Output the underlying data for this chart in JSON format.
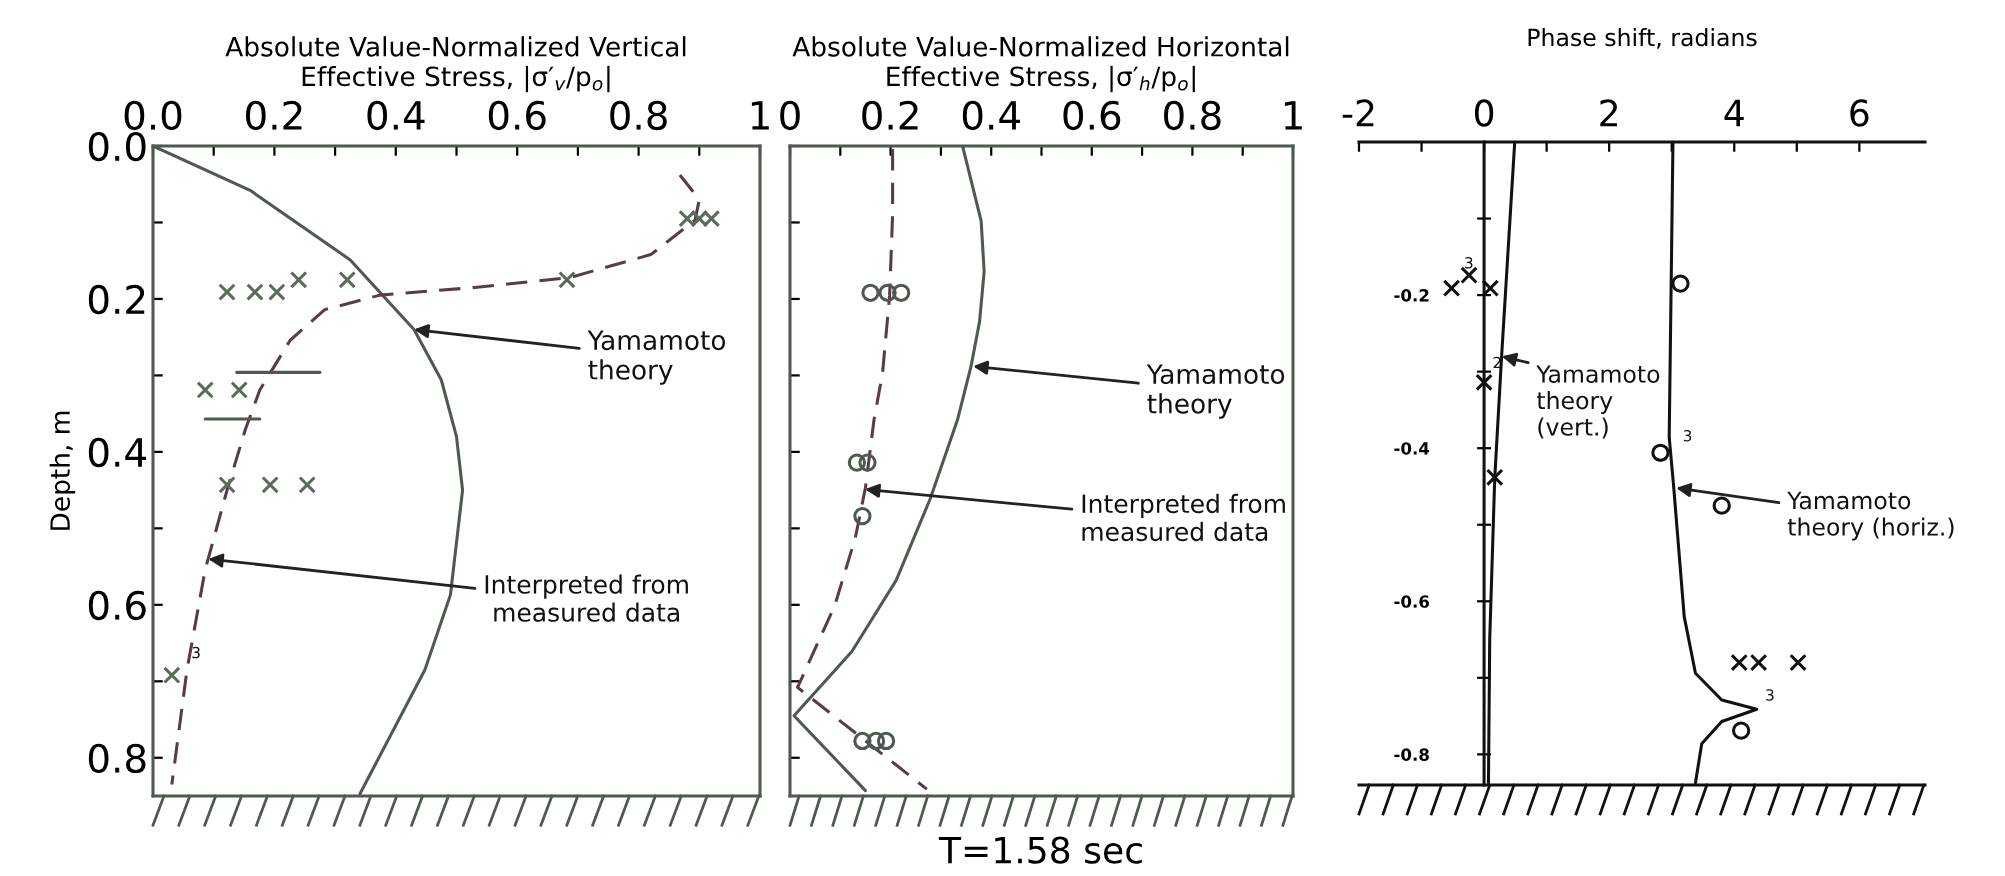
{
  "chart_data": [
    {
      "type": "line",
      "xlabel": "Absolute Value-Normalized Vertical\nEffective Stress, |σ′$_{v}$/p$_{o}$|",
      "ylabel": "Depth, m",
      "xlim": [
        0,
        1
      ],
      "xticks": [
        {
          "value": 0,
          "label": "0.0"
        },
        {
          "value": 0.1,
          "label": null
        },
        0.2,
        {
          "value": 0.3,
          "label": null
        },
        0.4,
        {
          "value": 0.5,
          "label": null
        },
        0.6,
        {
          "value": 0.7,
          "label": null
        },
        0.8,
        {
          "value": 0.9,
          "label": null
        },
        1
      ],
      "ylim": [
        0.85,
        0
      ],
      "yticks": [
        {
          "value": 0,
          "label": "0.0"
        },
        {
          "value": 0.1,
          "label": null
        },
        0.2,
        {
          "value": 0.3,
          "label": null
        },
        0.4,
        {
          "value": 0.5,
          "label": null
        },
        0.6,
        {
          "value": 0.7,
          "label": null
        },
        0.8
      ],
      "series": [
        {
          "color": "#4d5a4d",
          "line_style": "solid",
          "x": [
            0,
            0.16,
            0.325,
            0.43,
            0.475,
            0.5,
            0.51,
            0.49,
            0.448,
            0.341
          ],
          "values": [
            0,
            0.058,
            0.149,
            0.24,
            0.306,
            0.38,
            0.45,
            0.587,
            0.685,
            0.847
          ]
        },
        {
          "color": "#5b3a4a",
          "line_style": "dashed",
          "x": [
            0.868,
            0.9,
            0.893,
            0.82,
            0.687,
            0.53,
            0.374,
            0.283,
            0.226,
            0.176,
            0.152,
            0.122,
            0.086,
            0.056,
            0.031
          ],
          "values": [
            0.038,
            0.07,
            0.097,
            0.142,
            0.172,
            0.185,
            0.195,
            0.214,
            0.254,
            0.319,
            0.371,
            0.45,
            0.554,
            0.685,
            0.835
          ]
        },
        {
          "type": "scatter",
          "color": "#5a6b5a",
          "marker": "cross",
          "x": [
            0.88,
            0.9,
            0.92,
            0.122,
            0.168,
            0.204,
            0.24,
            0.32,
            0.682,
            0.086,
            0.142,
            0.122,
            0.193,
            0.254,
            0.031
          ],
          "values": [
            0.095,
            0.095,
            0.095,
            0.191,
            0.191,
            0.191,
            0.175,
            0.175,
            0.175,
            0.319,
            0.319,
            0.443,
            0.443,
            0.443,
            0.692
          ]
        },
        {
          "color": "#4d5a4d",
          "line_style": "solid",
          "x": [
            0.138,
            0.275
          ],
          "values": [
            0.296,
            0.296
          ]
        },
        {
          "color": "#4d5a4d",
          "line_style": "solid",
          "x": [
            0.086,
            0.176
          ],
          "values": [
            0.357,
            0.357
          ]
        }
      ],
      "annotations": [
        {
          "text": "Yamamoto\ntheory",
          "x": 0.43,
          "y": 0.24
        },
        {
          "text": "Interpreted from\nmeasured data",
          "x": 0.091,
          "y": 0.54
        },
        {
          "text": "3",
          "x": 0.031,
          "y": 0.692
        }
      ]
    },
    {
      "type": "line",
      "xlabel": "Absolute Value-Normalized Horizontal\nEffective Stress, |σ′$_{h}$/p$_{o}$|",
      "xlim": [
        0,
        1
      ],
      "xticks": [
        0,
        {
          "value": 0.1,
          "label": null
        },
        0.2,
        {
          "value": 0.3,
          "label": null
        },
        0.4,
        {
          "value": 0.5,
          "label": null
        },
        0.6,
        {
          "value": 0.7,
          "label": null
        },
        0.8,
        {
          "value": 0.9,
          "label": null
        },
        1
      ],
      "ylim": [
        0.85,
        0
      ],
      "yticks": [
        {
          "value": 0,
          "label": null
        },
        {
          "value": 0.1,
          "label": null
        },
        {
          "value": 0.2,
          "label": null
        },
        {
          "value": 0.3,
          "label": null
        },
        {
          "value": 0.4,
          "label": null
        },
        {
          "value": 0.5,
          "label": null
        },
        {
          "value": 0.6,
          "label": null
        },
        {
          "value": 0.7,
          "label": null
        },
        {
          "value": 0.8,
          "label": null
        }
      ],
      "tick_labels": "x",
      "series": [
        {
          "color": "#4d5a4d",
          "line_style": "solid",
          "x": [
            0.343,
            0.38,
            0.386,
            0.377,
            0.36,
            0.333,
            0.279,
            0.211,
            0.123,
            0.008,
            0.15
          ],
          "values": [
            0,
            0.098,
            0.164,
            0.229,
            0.288,
            0.358,
            0.461,
            0.568,
            0.661,
            0.745,
            0.843
          ]
        },
        {
          "color": "#5b3a4a",
          "line_style": "dashed",
          "x": [
            0.204,
            0.204,
            0.198,
            0.184,
            0.167,
            0.15,
            0.13,
            0.089,
            0.015,
            0.272
          ],
          "values": [
            0.004,
            0.089,
            0.196,
            0.297,
            0.358,
            0.447,
            0.512,
            0.601,
            0.708,
            0.841
          ]
        },
        {
          "type": "scatter",
          "color": "#4d5a4d",
          "marker": "circle",
          "x": [
            0.16,
            0.194,
            0.221,
            0.133,
            0.154,
            0.144,
            0.144,
            0.171,
            0.191
          ],
          "values": [
            0.192,
            0.192,
            0.192,
            0.414,
            0.414,
            0.484,
            0.778,
            0.778,
            0.778
          ]
        }
      ],
      "annotations": [
        {
          "text": "Yamamoto\ntheory",
          "x": 0.364,
          "y": 0.288
        },
        {
          "text": "Interpreted from\nmeasured data",
          "x": 0.149,
          "y": 0.449
        },
        "T=1.58 sec"
      ]
    },
    {
      "type": "line",
      "xlabel": "Phase shift, radians",
      "xlim": [
        -2,
        7.05
      ],
      "xticks": [
        -2,
        {
          "value": -1,
          "label": null
        },
        0,
        {
          "value": 1,
          "label": null
        },
        2,
        {
          "value": 3,
          "label": null
        },
        4,
        {
          "value": 5,
          "label": null
        },
        6
      ],
      "ylim": [
        -0.84,
        0
      ],
      "yticks": [
        {
          "value": -0.1,
          "label": null
        },
        -0.2,
        {
          "value": -0.3,
          "label": null
        },
        -0.4,
        {
          "value": -0.5,
          "label": null
        },
        -0.6,
        {
          "value": -0.7,
          "label": null
        },
        -0.8
      ],
      "series": [
        {
          "color": "#111111",
          "line_style": "solid",
          "x": [
            0.49,
            0.28,
            0.17,
            0.09,
            0.07
          ],
          "values": [
            0,
            -0.28,
            -0.44,
            -0.65,
            -0.837
          ]
        },
        {
          "color": "#111111",
          "line_style": "solid",
          "x": [
            3.02,
            2.96,
            3.03,
            3.2,
            3.38,
            3.8,
            4.36,
            3.8,
            3.48,
            3.38
          ],
          "values": [
            0,
            -0.386,
            -0.449,
            -0.62,
            -0.694,
            -0.729,
            -0.741,
            -0.757,
            -0.786,
            -0.837
          ]
        },
        {
          "type": "scatter",
          "color": "#111111",
          "marker": "cross",
          "x": [
            -0.52,
            -0.24,
            0.1,
            0,
            0.17,
            4.08,
            4.39,
            5.02
          ],
          "values": [
            -0.191,
            -0.174,
            -0.191,
            -0.314,
            -0.438,
            -0.68,
            -0.68,
            -0.68
          ]
        },
        {
          "type": "scatter",
          "color": "#111111",
          "marker": "circle",
          "x": [
            3.14,
            2.82,
            3.8,
            4.11
          ],
          "values": [
            -0.185,
            -0.406,
            -0.475,
            -0.769
          ]
        }
      ],
      "annotations": [
        {
          "text": "Yamamoto\ntheory\n(vert.)",
          "x": 0.28,
          "y": -0.28
        },
        {
          "text": "Yamamoto\ntheory (horiz.)",
          "x": 3.07,
          "y": -0.452
        },
        {
          "text": "3",
          "x": 0.1,
          "y": -0.191
        },
        {
          "text": "2",
          "x": 0,
          "y": -0.314
        },
        {
          "text": "3",
          "x": 2.82,
          "y": -0.406
        },
        {
          "text": "3",
          "x": 4.36,
          "y": -0.741
        }
      ]
    }
  ]
}
